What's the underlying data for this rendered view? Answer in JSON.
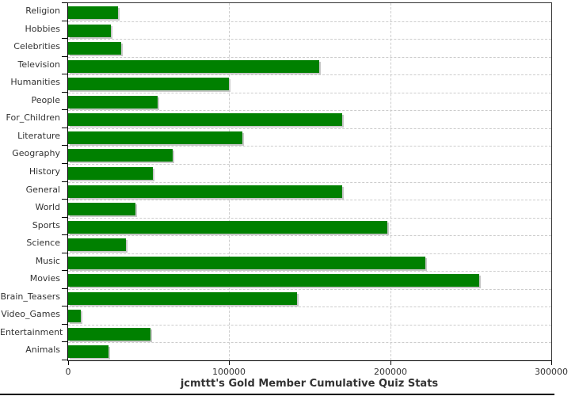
{
  "chart_data": {
    "type": "bar",
    "orientation": "horizontal",
    "title": "jcmttt's Gold Member Cumulative Quiz Stats",
    "categories": [
      "Religion",
      "Hobbies",
      "Celebrities",
      "Television",
      "Humanities",
      "People",
      "For_Children",
      "Literature",
      "Geography",
      "History",
      "General",
      "World",
      "Sports",
      "Science",
      "Music",
      "Movies",
      "Brain_Teasers",
      "Video_Games",
      "Entertainment",
      "Animals"
    ],
    "values": [
      31000,
      26500,
      33000,
      156000,
      100000,
      55500,
      170000,
      108000,
      65000,
      52500,
      170000,
      42000,
      198000,
      36000,
      222000,
      255000,
      142000,
      8000,
      51000,
      25000
    ],
    "xlabel": "",
    "ylabel": "",
    "xlim": [
      0,
      300000
    ],
    "x_ticks": [
      0,
      100000,
      200000,
      300000
    ],
    "x_tick_labels": [
      "0",
      "100000",
      "200000",
      "300000"
    ],
    "legend": "none",
    "grid": {
      "vertical": "dashed at x ticks",
      "horizontal": "dashed at category boundaries"
    },
    "colors": {
      "bar": "#008000",
      "bar_shadow": "#c8c8c8",
      "grid": "#cccccc",
      "axis": "#333333",
      "text": "#333333",
      "background": "#ffffff",
      "bottom_rule": "#000000"
    }
  }
}
